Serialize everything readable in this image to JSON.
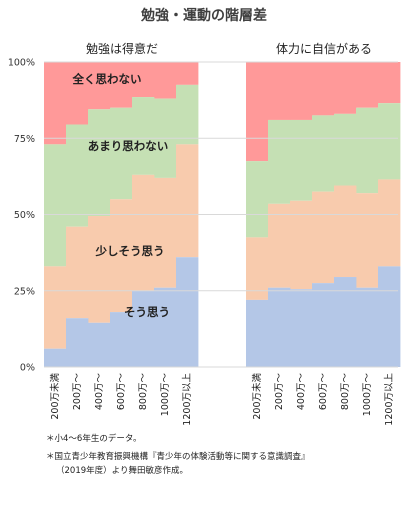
{
  "chart_data": {
    "type": "stacked-area",
    "title": "勉強・運動の階層差",
    "y_ticks": [
      "0%",
      "25%",
      "50%",
      "75%",
      "100%"
    ],
    "ylim": [
      0,
      100
    ],
    "grid": true,
    "categories": [
      "200万未満",
      "200万〜",
      "400万〜",
      "600万〜",
      "800万〜",
      "1000万〜",
      "1200万以上"
    ],
    "series_labels": [
      "そう思う",
      "少しそう思う",
      "あまり思わない",
      "全く思わない"
    ],
    "colors": {
      "soo_omou": "#b4c7e7",
      "sukoshi": "#f8cbad",
      "amari": "#c5e0b4",
      "mattaku": "#ff9999",
      "grid": "#d9d9d9"
    },
    "panels": [
      {
        "title": "勉強は得意だ",
        "cumulative": {
          "soo_omou": [
            6,
            16,
            14.5,
            18,
            25,
            26,
            36
          ],
          "sukoshi": [
            33,
            46,
            49.5,
            55,
            63,
            62,
            73
          ],
          "amari": [
            73,
            79.5,
            84.5,
            85,
            88.5,
            88,
            92.5
          ]
        }
      },
      {
        "title": "体力に自信がある",
        "cumulative": {
          "soo_omou": [
            22,
            26,
            25.5,
            27.5,
            29.5,
            26,
            33
          ],
          "sukoshi": [
            42.5,
            53.5,
            54.5,
            57.5,
            59.5,
            57,
            61.5
          ],
          "amari": [
            67.5,
            81,
            81,
            82.5,
            83,
            85,
            86.5
          ]
        }
      }
    ]
  },
  "notes": [
    "＊小4〜6年生のデータ。",
    "＊国立青少年教育振興機構『青少年の体験活動等に関する意識調査』",
    "（2019年度）より舞田敏彦作成。"
  ]
}
